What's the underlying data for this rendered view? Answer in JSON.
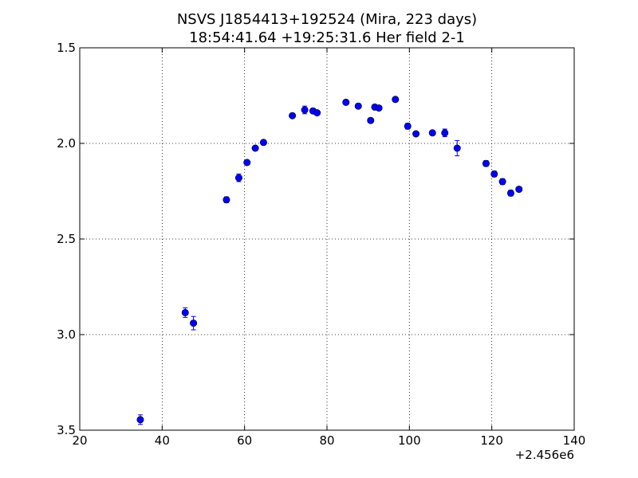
{
  "chart_data": {
    "type": "scatter",
    "title": "NSVS J1854413+192524 (Mira, 223 days)",
    "subtitle": "18:54:41.64 +19:25:31.6 Her field 2-1",
    "xlabel": "",
    "ylabel": "",
    "x_offset_label": "+2.456e6",
    "xlim": [
      20,
      140
    ],
    "ylim": [
      3.5,
      1.5
    ],
    "y_inverted": true,
    "grid": true,
    "grid_style": "dotted",
    "marker_color": "#0000ff",
    "x_ticks": [
      20,
      40,
      60,
      80,
      100,
      120,
      140
    ],
    "x_tick_labels": [
      "20",
      "40",
      "60",
      "80",
      "100",
      "120",
      "140"
    ],
    "y_ticks": [
      1.5,
      2.0,
      2.5,
      3.0,
      3.5
    ],
    "y_tick_labels": [
      "1.5",
      "2.0",
      "2.5",
      "3.0",
      "3.5"
    ],
    "series": [
      {
        "points": [
          {
            "x": 34.7,
            "y": 3.445,
            "err": 0.025
          },
          {
            "x": 45.6,
            "y": 2.885,
            "err": 0.025
          },
          {
            "x": 47.6,
            "y": 2.94,
            "err": 0.035
          },
          {
            "x": 55.6,
            "y": 2.295,
            "err": 0.015
          },
          {
            "x": 58.6,
            "y": 2.18,
            "err": 0.02
          },
          {
            "x": 60.6,
            "y": 2.1,
            "err": 0.012
          },
          {
            "x": 62.6,
            "y": 2.025,
            "err": 0.012
          },
          {
            "x": 64.6,
            "y": 1.995,
            "err": 0.01
          },
          {
            "x": 71.6,
            "y": 1.855,
            "err": 0.01
          },
          {
            "x": 74.6,
            "y": 1.825,
            "err": 0.02
          },
          {
            "x": 76.6,
            "y": 1.83,
            "err": 0.012
          },
          {
            "x": 77.6,
            "y": 1.84,
            "err": 0.012
          },
          {
            "x": 84.6,
            "y": 1.785,
            "err": 0.01
          },
          {
            "x": 87.6,
            "y": 1.805,
            "err": 0.012
          },
          {
            "x": 90.6,
            "y": 1.88,
            "err": 0.012
          },
          {
            "x": 91.6,
            "y": 1.81,
            "err": 0.01
          },
          {
            "x": 92.6,
            "y": 1.815,
            "err": 0.01
          },
          {
            "x": 96.6,
            "y": 1.77,
            "err": 0.01
          },
          {
            "x": 99.6,
            "y": 1.91,
            "err": 0.015
          },
          {
            "x": 101.6,
            "y": 1.95,
            "err": 0.012
          },
          {
            "x": 105.6,
            "y": 1.945,
            "err": 0.012
          },
          {
            "x": 108.6,
            "y": 1.945,
            "err": 0.02
          },
          {
            "x": 111.6,
            "y": 2.025,
            "err": 0.04
          },
          {
            "x": 118.6,
            "y": 2.105,
            "err": 0.015
          },
          {
            "x": 120.6,
            "y": 2.16,
            "err": 0.015
          },
          {
            "x": 122.6,
            "y": 2.2,
            "err": 0.015
          },
          {
            "x": 124.6,
            "y": 2.26,
            "err": 0.015
          },
          {
            "x": 126.6,
            "y": 2.24,
            "err": 0.012
          }
        ]
      }
    ]
  }
}
